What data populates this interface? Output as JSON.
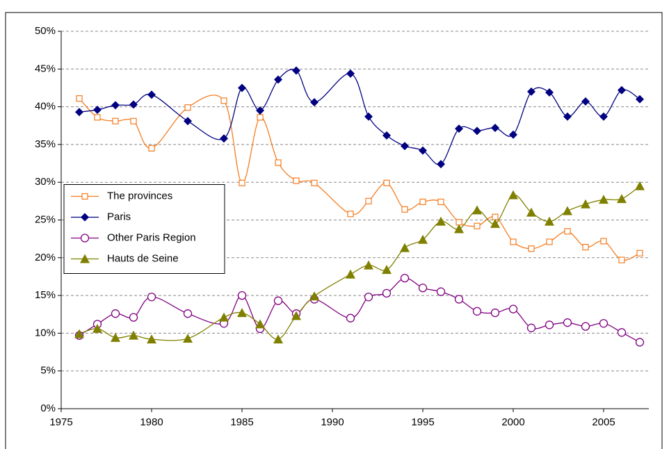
{
  "chart_data": {
    "type": "line",
    "x": [
      1976,
      1977,
      1978,
      1979,
      1980,
      1982,
      1984,
      1985,
      1986,
      1987,
      1988,
      1989,
      1991,
      1992,
      1993,
      1994,
      1995,
      1996,
      1997,
      1998,
      1999,
      2000,
      2001,
      2002,
      2003,
      2004,
      2005,
      2006,
      2007
    ],
    "series": [
      {
        "name": "The provinces",
        "color": "#f47c20",
        "marker": "square",
        "values": [
          41.1,
          38.6,
          38.1,
          38.1,
          34.5,
          39.9,
          40.8,
          29.9,
          38.6,
          32.6,
          30.2,
          29.9,
          25.8,
          27.5,
          29.9,
          26.4,
          27.4,
          27.4,
          24.7,
          24.2,
          25.4,
          22.1,
          21.2,
          22.1,
          23.5,
          21.4,
          22.2,
          19.7,
          20.6
        ]
      },
      {
        "name": "Paris",
        "color": "#000080",
        "marker": "diamond",
        "values": [
          39.3,
          39.6,
          40.2,
          40.3,
          41.6,
          38.1,
          35.8,
          42.5,
          39.5,
          43.6,
          44.8,
          40.6,
          44.4,
          38.7,
          36.2,
          34.8,
          34.2,
          32.4,
          37.1,
          36.8,
          37.2,
          36.3,
          42.0,
          41.9,
          38.7,
          40.7,
          38.7,
          42.2,
          41.0
        ]
      },
      {
        "name": "Other Paris Region",
        "color": "#800080",
        "marker": "circle",
        "values": [
          9.7,
          11.2,
          12.6,
          12.1,
          14.8,
          12.6,
          11.3,
          15.0,
          10.6,
          14.3,
          12.6,
          14.5,
          12.0,
          14.8,
          15.3,
          17.3,
          16.0,
          15.5,
          14.5,
          12.9,
          12.7,
          13.2,
          10.7,
          11.1,
          11.4,
          10.9,
          11.3,
          10.1,
          8.8
        ]
      },
      {
        "name": "Hauts de Seine",
        "color": "#808000",
        "marker": "triangle",
        "values": [
          9.9,
          10.6,
          9.4,
          9.7,
          9.2,
          9.3,
          12.1,
          12.7,
          11.2,
          9.2,
          12.3,
          14.9,
          17.8,
          19.0,
          18.4,
          21.3,
          22.4,
          24.8,
          23.8,
          26.3,
          24.5,
          28.3,
          26.0,
          24.8,
          26.2,
          27.1,
          27.7,
          27.8,
          29.5
        ]
      }
    ],
    "xlim": [
      1975,
      2007.5
    ],
    "xticks": [
      1975,
      1980,
      1985,
      1990,
      1995,
      2000,
      2005
    ],
    "ylim": [
      0,
      50
    ],
    "yticks": [
      {
        "value": 0,
        "label": "0%"
      },
      {
        "value": 5,
        "label": "5%"
      },
      {
        "value": 10,
        "label": "10%"
      },
      {
        "value": 15,
        "label": "15%"
      },
      {
        "value": 20,
        "label": "20%"
      },
      {
        "value": 25,
        "label": "25%"
      },
      {
        "value": 30,
        "label": "30%"
      },
      {
        "value": 35,
        "label": "35%"
      },
      {
        "value": 40,
        "label": "40%"
      },
      {
        "value": 45,
        "label": "45%"
      },
      {
        "value": 50,
        "label": "50%"
      }
    ],
    "grid": true,
    "smooth": true,
    "legend": "center-left"
  }
}
